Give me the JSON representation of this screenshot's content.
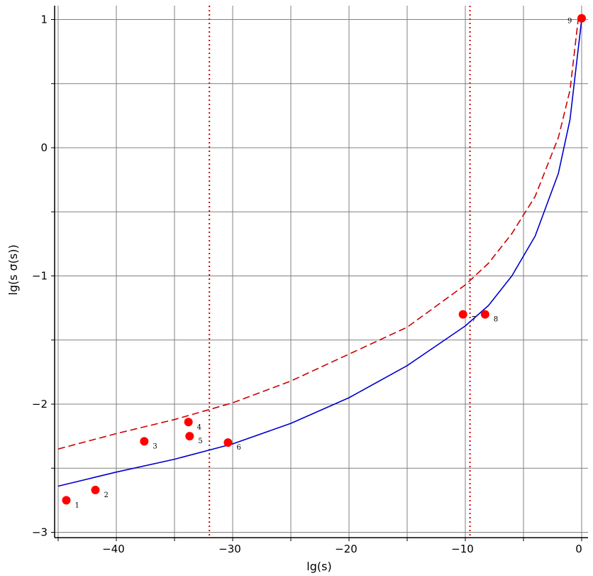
{
  "chart_data": {
    "type": "scatter",
    "xlabel": "lg(s)",
    "ylabel": "lg(s σ(s))",
    "xlim": [
      -45,
      0.6
    ],
    "ylim": [
      -3.0,
      1.1
    ],
    "xticks": [
      -40,
      -30,
      -20,
      -10,
      0
    ],
    "yticks": [
      -3,
      -2,
      -1,
      0,
      1
    ],
    "grid": true,
    "points": [
      {
        "label": "1",
        "x": -44.3,
        "y": -2.75
      },
      {
        "label": "2",
        "x": -41.8,
        "y": -2.67
      },
      {
        "label": "3",
        "x": -37.6,
        "y": -2.29
      },
      {
        "label": "4",
        "x": -33.8,
        "y": -2.14
      },
      {
        "label": "5",
        "x": -33.7,
        "y": -2.25
      },
      {
        "label": "6",
        "x": -30.4,
        "y": -2.3
      },
      {
        "label": "7",
        "x": -10.2,
        "y": -1.3
      },
      {
        "label": "8",
        "x": -8.3,
        "y": -1.3
      },
      {
        "label": "9",
        "x": 0.0,
        "y": 1.01
      }
    ],
    "curves": [
      {
        "style": "solid",
        "color": "#0000cc",
        "x": [
          -45,
          -40,
          -35,
          -30,
          -25,
          -20,
          -15,
          -10,
          -8,
          -6,
          -4,
          -2,
          -1,
          0
        ],
        "y": [
          -2.64,
          -2.53,
          -2.43,
          -2.31,
          -2.15,
          -1.95,
          -1.7,
          -1.39,
          -1.23,
          -1.0,
          -0.69,
          -0.2,
          0.22,
          1.0
        ]
      },
      {
        "style": "dashed",
        "color": "#cc0000",
        "x": [
          -45,
          -40,
          -35,
          -30,
          -25,
          -20,
          -15,
          -10,
          -8,
          -6,
          -4,
          -2,
          -1,
          -0.3
        ],
        "y": [
          -2.35,
          -2.23,
          -2.12,
          -1.99,
          -1.82,
          -1.61,
          -1.4,
          -1.07,
          -0.9,
          -0.67,
          -0.38,
          0.08,
          0.45,
          1.0
        ]
      }
    ],
    "vlines": [
      {
        "x": -32.0,
        "style": "dotted",
        "color": "#cc0000"
      },
      {
        "x": -9.6,
        "style": "dotted",
        "color": "#cc0000"
      }
    ],
    "colors": {
      "point": "#ff0000",
      "grid": "#808080",
      "axis": "#000000"
    }
  }
}
